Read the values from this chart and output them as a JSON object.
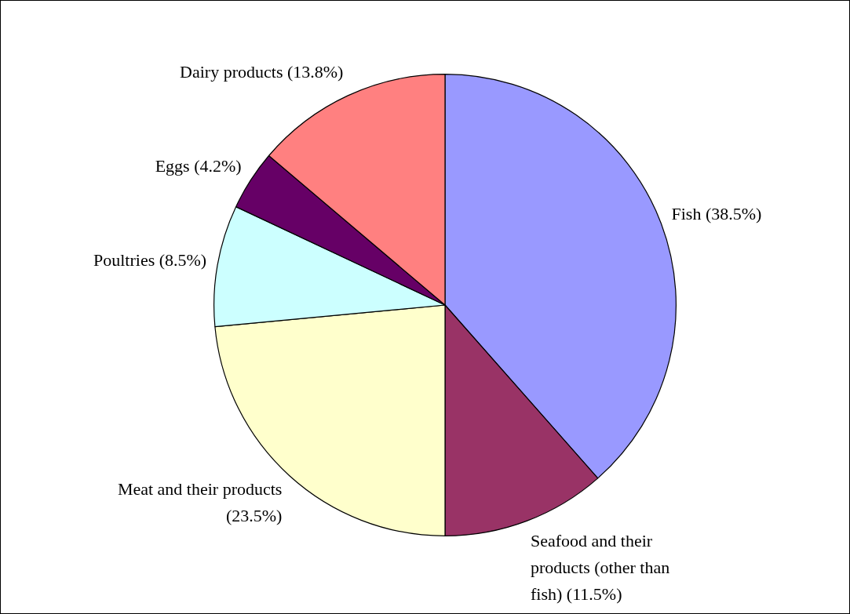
{
  "chart_data": {
    "type": "pie",
    "categories": [
      "Fish",
      "Seafood and their products (other than fish)",
      "Meat and their products",
      "Poultries",
      "Eggs",
      "Dairy products"
    ],
    "values": [
      38.5,
      11.5,
      23.5,
      8.5,
      4.2,
      13.8
    ],
    "value_labels": [
      "(38.5%)",
      "(11.5%)",
      "(23.5%)",
      "(8.5%)",
      "(4.2%)",
      "(13.8%)"
    ],
    "colors": [
      "#9999ff",
      "#993366",
      "#ffffcc",
      "#ccffff",
      "#660066",
      "#ff8080"
    ],
    "legend": false
  }
}
